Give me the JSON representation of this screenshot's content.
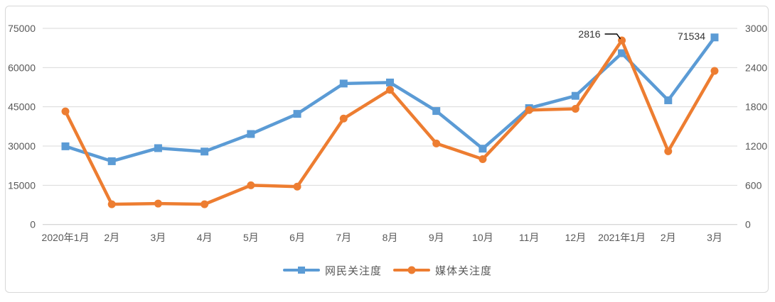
{
  "chart_data": {
    "type": "line",
    "title": "",
    "categories": [
      "2020年1月",
      "2月",
      "3月",
      "4月",
      "5月",
      "6月",
      "7月",
      "8月",
      "9月",
      "10月",
      "11月",
      "12月",
      "2021年1月",
      "2月",
      "3月"
    ],
    "series": [
      {
        "name": "网民关注度",
        "axis": "left",
        "color": "#5B9BD5",
        "marker": "square",
        "values": [
          29900,
          24200,
          29200,
          27900,
          34600,
          42300,
          53900,
          54300,
          43400,
          29000,
          44500,
          49200,
          65500,
          47500,
          71534
        ]
      },
      {
        "name": "媒体关注度",
        "axis": "right",
        "color": "#ED7D31",
        "marker": "circle",
        "values": [
          1730,
          310,
          320,
          310,
          600,
          580,
          1620,
          2060,
          1240,
          1000,
          1750,
          1770,
          2816,
          1120,
          2350
        ]
      }
    ],
    "y_left": {
      "min": 0,
      "max": 75000,
      "step": 15000,
      "ticks": [
        "0",
        "15000",
        "30000",
        "45000",
        "60000",
        "75000"
      ]
    },
    "y_right": {
      "min": 0,
      "max": 3000,
      "step": 600,
      "ticks": [
        "0",
        "600",
        "1200",
        "1800",
        "2400",
        "3000"
      ]
    },
    "annotations": [
      {
        "text": "2816",
        "series": 1,
        "category_index": 12,
        "leader": true
      },
      {
        "text": "71534",
        "series": 0,
        "category_index": 14,
        "leader": false
      }
    ],
    "legend_position": "bottom",
    "grid": "horizontal",
    "colors": {
      "grid": "#D9D9D9",
      "axis_line": "#C9C9C9",
      "axis_text": "#595959",
      "annotation_text": "#333333",
      "leader_line": "#000000",
      "frame_border": "#D8D8D8",
      "background": "#FFFFFF"
    }
  }
}
